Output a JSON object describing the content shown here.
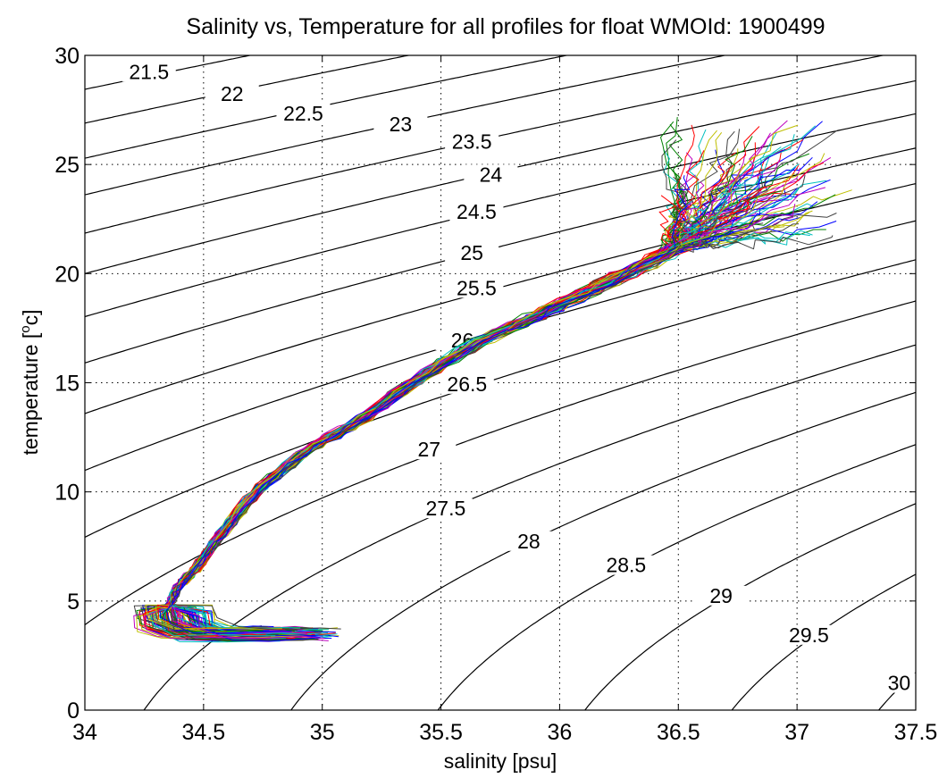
{
  "chart_data": {
    "type": "line",
    "title": "Salinity vs, Temperature for all profiles for float WMOId: 1900499",
    "xlabel": "salinity [psu]",
    "ylabel_main": "temperature [",
    "ylabel_sup": "o",
    "ylabel_end": "c]",
    "xlim": [
      34,
      37.5
    ],
    "ylim": [
      0,
      30
    ],
    "xticks": [
      34,
      34.5,
      35,
      35.5,
      36,
      36.5,
      37,
      37.5
    ],
    "xtick_labels": [
      "34",
      "34.5",
      "35",
      "35.5",
      "36",
      "36.5",
      "37",
      "37.5"
    ],
    "yticks": [
      0,
      5,
      10,
      15,
      20,
      25,
      30
    ],
    "ytick_labels": [
      "0",
      "5",
      "10",
      "15",
      "20",
      "25",
      "30"
    ],
    "grid": true,
    "contours": {
      "quantity": "sigma-theta",
      "levels": [
        21.5,
        22,
        22.5,
        23,
        23.5,
        24,
        24.5,
        25,
        25.5,
        26,
        26.5,
        27,
        27.5,
        28,
        28.5,
        29,
        29.5,
        30
      ],
      "labels": [
        "21.5",
        "22",
        "22.5",
        "23",
        "23.5",
        "24",
        "24.5",
        "25",
        "25.5",
        "26",
        "26.5",
        "27",
        "27.5",
        "28",
        "28.5",
        "29",
        "29.5",
        "30"
      ],
      "label_positions": [
        [
          34.27,
          29.0
        ],
        [
          34.62,
          28.0
        ],
        [
          34.92,
          27.1
        ],
        [
          35.33,
          26.6
        ],
        [
          35.63,
          25.8
        ],
        [
          35.71,
          24.3
        ],
        [
          35.65,
          22.6
        ],
        [
          35.63,
          20.7
        ],
        [
          35.65,
          19.1
        ],
        [
          35.59,
          16.7
        ],
        [
          35.61,
          14.7
        ],
        [
          35.45,
          11.7
        ],
        [
          35.52,
          9.0
        ],
        [
          35.87,
          7.5
        ],
        [
          36.28,
          6.4
        ],
        [
          36.68,
          5.0
        ],
        [
          37.05,
          3.2
        ],
        [
          37.43,
          1.0
        ]
      ]
    },
    "series_backbone": {
      "salinity": [
        34.35,
        34.38,
        34.47,
        34.57,
        34.72,
        34.92,
        35.16,
        35.42,
        35.68,
        35.95,
        36.22,
        36.5
      ],
      "temperature": [
        4.5,
        5.5,
        6.5,
        8.0,
        10.0,
        11.8,
        13.3,
        15.3,
        17.0,
        18.3,
        19.7,
        21.2
      ]
    },
    "series_shallow_fan": {
      "salinity_range": [
        36.2,
        37.2
      ],
      "temperature_range": [
        19.5,
        27.0
      ]
    },
    "series_deep_tail": {
      "salinity": [
        34.37,
        34.38,
        34.48,
        34.65,
        34.82,
        34.9
      ],
      "temperature": [
        4.5,
        3.9,
        3.5,
        3.45,
        3.5,
        3.5
      ]
    },
    "series_count": 120,
    "series_colors": [
      "#0000ff",
      "#008000",
      "#ff0000",
      "#00bfbf",
      "#bf00bf",
      "#bfbf00",
      "#404040"
    ]
  }
}
